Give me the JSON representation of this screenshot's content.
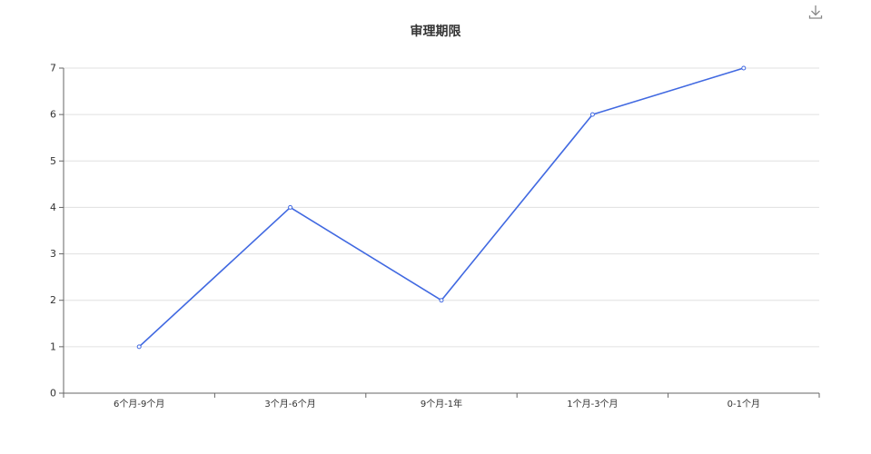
{
  "toolbox": {
    "download_icon": "download-icon"
  },
  "chart_data": {
    "type": "line",
    "title": "审理期限",
    "categories": [
      "6个月-9个月",
      "3个月-6个月",
      "9个月-1年",
      "1个月-3个月",
      "0-1个月"
    ],
    "series": [
      {
        "values": [
          1,
          4,
          2,
          6,
          7
        ]
      }
    ],
    "ylim": [
      0,
      7
    ],
    "yticks": [
      0,
      1,
      2,
      3,
      4,
      5,
      6,
      7
    ],
    "grid": true,
    "colors": {
      "line": "#4169E1",
      "grid": "#E0E0E0",
      "axis": "#666666",
      "text": "#333333"
    }
  }
}
